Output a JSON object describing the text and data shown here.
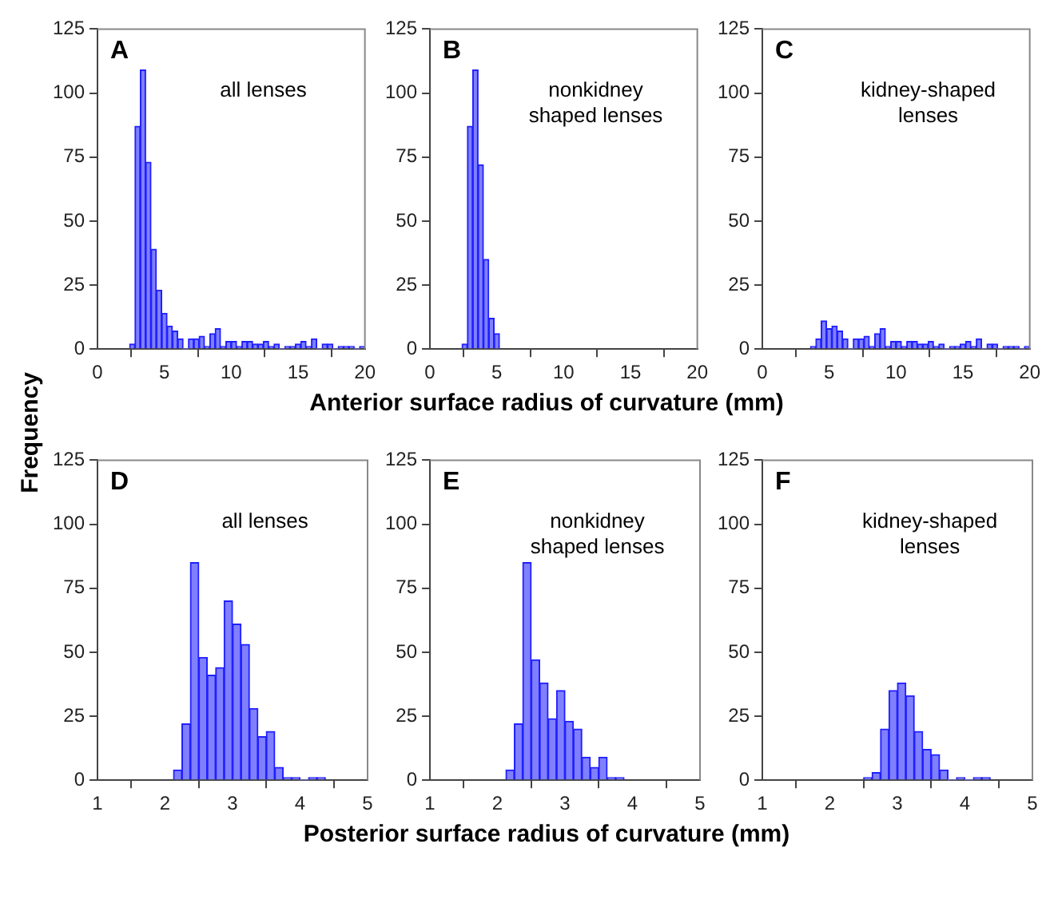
{
  "chart_data": [
    {
      "type": "histogram",
      "title": "A",
      "annotations": [
        "all lenses"
      ],
      "ylabel": "Frequency",
      "color": "#8080ff",
      "xlim": [
        0,
        20
      ],
      "xticks": [
        0,
        5,
        10,
        15,
        20
      ],
      "ylim": [
        0,
        125
      ],
      "yticks": [
        0,
        25,
        50,
        75,
        100,
        125
      ],
      "grid": false,
      "bins": [
        2.4,
        2.8,
        3.2,
        3.6,
        4.0,
        4.4,
        4.8,
        5.2,
        5.6,
        6.0,
        6.4,
        6.8,
        7.2,
        7.6,
        8.0,
        8.4,
        8.8,
        9.2,
        9.6,
        10.0,
        10.4,
        10.8,
        11.2,
        11.6,
        12.0,
        12.4,
        12.8,
        13.2,
        13.6,
        14.0,
        14.4,
        14.8,
        15.2,
        15.6,
        16.0,
        16.4,
        16.8,
        17.2,
        17.6,
        18.0,
        18.4,
        18.8,
        19.2,
        19.6,
        20.0
      ],
      "values": [
        2,
        87,
        109,
        73,
        39,
        23,
        14,
        9,
        7,
        4,
        0,
        4,
        4,
        5,
        1,
        6,
        8,
        1,
        3,
        3,
        1,
        3,
        3,
        2,
        2,
        3,
        1,
        2,
        0,
        1,
        1,
        2,
        3,
        1,
        4,
        0,
        2,
        2,
        0,
        1,
        1,
        1,
        0,
        1
      ]
    },
    {
      "type": "histogram",
      "title": "B",
      "annotations": [
        "nonkidney shaped lenses"
      ],
      "xlabel": "Anterior surface radius of curvature (mm)",
      "color": "#8080ff",
      "xlim": [
        0,
        20
      ],
      "xticks": [
        0,
        5,
        10,
        15,
        20
      ],
      "ylim": [
        0,
        125
      ],
      "yticks": [
        0,
        25,
        50,
        75,
        100,
        125
      ],
      "grid": false,
      "bins": [
        2.4,
        2.8,
        3.2,
        3.6,
        4.0,
        4.4,
        4.8,
        5.2
      ],
      "values": [
        2,
        87,
        109,
        72,
        35,
        12,
        6
      ]
    },
    {
      "type": "histogram",
      "title": "C",
      "annotations": [
        "kidney-shaped lenses"
      ],
      "color": "#8080ff",
      "xlim": [
        0,
        20
      ],
      "xticks": [
        0,
        5,
        10,
        15,
        20
      ],
      "ylim": [
        0,
        125
      ],
      "yticks": [
        0,
        25,
        50,
        75,
        100,
        125
      ],
      "grid": false,
      "bins": [
        3.6,
        4.0,
        4.4,
        4.8,
        5.2,
        5.6,
        6.0,
        6.4,
        6.8,
        7.2,
        7.6,
        8.0,
        8.4,
        8.8,
        9.2,
        9.6,
        10.0,
        10.4,
        10.8,
        11.2,
        11.6,
        12.0,
        12.4,
        12.8,
        13.2,
        13.6,
        14.0,
        14.4,
        14.8,
        15.2,
        15.6,
        16.0,
        16.4,
        16.8,
        17.2,
        17.6,
        18.0,
        18.4,
        18.8,
        19.2,
        19.6,
        20.0
      ],
      "values": [
        1,
        4,
        11,
        8,
        9,
        7,
        4,
        0,
        4,
        4,
        5,
        1,
        6,
        8,
        1,
        3,
        3,
        1,
        3,
        3,
        2,
        2,
        3,
        1,
        2,
        0,
        1,
        1,
        2,
        3,
        1,
        4,
        0,
        2,
        2,
        0,
        1,
        1,
        1,
        0,
        1
      ]
    },
    {
      "type": "histogram",
      "title": "D",
      "annotations": [
        "all lenses"
      ],
      "color": "#8080ff",
      "xlim": [
        1,
        5
      ],
      "xticks": [
        1,
        2,
        3,
        4,
        5
      ],
      "ylim": [
        0,
        125
      ],
      "yticks": [
        0,
        25,
        50,
        75,
        100,
        125
      ],
      "grid": false,
      "bins": [
        2.125,
        2.25,
        2.375,
        2.5,
        2.625,
        2.75,
        2.875,
        3.0,
        3.125,
        3.25,
        3.375,
        3.5,
        3.625,
        3.75,
        3.875,
        4.0,
        4.125,
        4.25,
        4.375
      ],
      "values": [
        4,
        22,
        85,
        48,
        41,
        44,
        70,
        61,
        53,
        28,
        17,
        19,
        5,
        1,
        1,
        0,
        1,
        1
      ]
    },
    {
      "type": "histogram",
      "title": "E",
      "annotations": [
        "nonkidney shaped lenses"
      ],
      "xlabel": "Posterior surface radius of curvature (mm)",
      "color": "#8080ff",
      "xlim": [
        1,
        5
      ],
      "xticks": [
        1,
        2,
        3,
        4,
        5
      ],
      "ylim": [
        0,
        125
      ],
      "yticks": [
        0,
        25,
        50,
        75,
        100,
        125
      ],
      "grid": false,
      "bins": [
        2.125,
        2.25,
        2.375,
        2.5,
        2.625,
        2.75,
        2.875,
        3.0,
        3.125,
        3.25,
        3.375,
        3.5,
        3.625,
        3.75,
        3.875
      ],
      "values": [
        4,
        22,
        85,
        47,
        38,
        24,
        35,
        23,
        20,
        9,
        5,
        9,
        1,
        1
      ]
    },
    {
      "type": "histogram",
      "title": "F",
      "annotations": [
        "kidney-shaped lenses"
      ],
      "color": "#8080ff",
      "xlim": [
        1,
        5
      ],
      "xticks": [
        1,
        2,
        3,
        4,
        5
      ],
      "ylim": [
        0,
        125
      ],
      "yticks": [
        0,
        25,
        50,
        75,
        100,
        125
      ],
      "grid": false,
      "bins": [
        2.5,
        2.625,
        2.75,
        2.875,
        3.0,
        3.125,
        3.25,
        3.375,
        3.5,
        3.625,
        3.75,
        3.875,
        4.0,
        4.125,
        4.25,
        4.375
      ],
      "values": [
        1,
        3,
        20,
        35,
        38,
        33,
        19,
        12,
        10,
        4,
        0,
        1,
        0,
        1,
        1
      ]
    }
  ]
}
